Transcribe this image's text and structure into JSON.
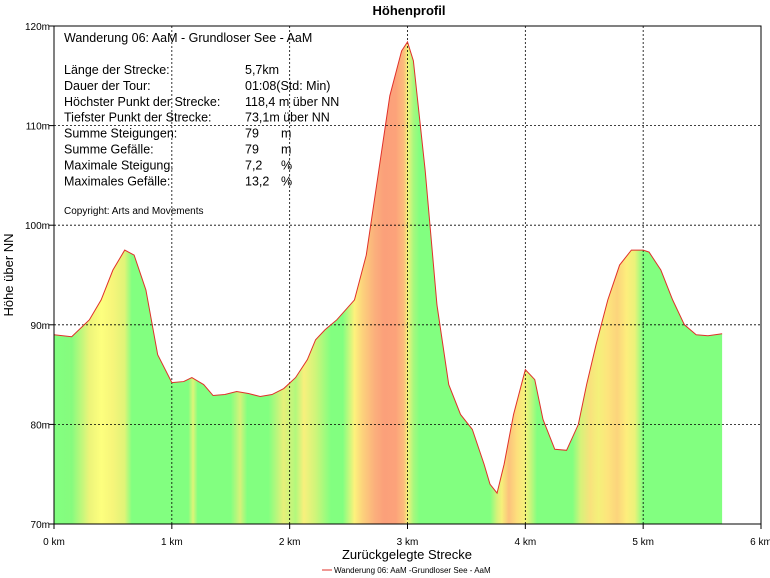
{
  "chart_data": {
    "type": "area",
    "title": "Höhenprofil",
    "xlabel": "Zurückgelegte Strecke",
    "ylabel": "Höhe über NN",
    "xlim": [
      0,
      6
    ],
    "ylim": [
      70,
      120
    ],
    "x_ticks": [
      0,
      1,
      2,
      3,
      4,
      5,
      6
    ],
    "x_tick_labels": [
      "0 km",
      "1 km",
      "2 km",
      "3 km",
      "4 km",
      "5 km",
      "6 km"
    ],
    "y_ticks": [
      70,
      80,
      90,
      100,
      110,
      120
    ],
    "y_tick_labels": [
      "70m",
      "80m",
      "90m",
      "100m",
      "110m",
      "120m"
    ],
    "grid": true,
    "legend_position": "bottom-center",
    "series": [
      {
        "name": "Wanderung 06: AaM -Grundloser See - AaM",
        "color": "#e0302a",
        "x": [
          0,
          0.15,
          0.3,
          0.4,
          0.5,
          0.6,
          0.68,
          0.78,
          0.88,
          1.0,
          1.1,
          1.17,
          1.27,
          1.35,
          1.45,
          1.55,
          1.65,
          1.75,
          1.85,
          1.95,
          2.05,
          2.15,
          2.22,
          2.3,
          2.4,
          2.55,
          2.65,
          2.75,
          2.85,
          2.95,
          3.0,
          3.05,
          3.15,
          3.25,
          3.35,
          3.45,
          3.55,
          3.65,
          3.7,
          3.76,
          3.82,
          3.9,
          4.0,
          4.08,
          4.15,
          4.25,
          4.35,
          4.45,
          4.52,
          4.6,
          4.7,
          4.8,
          4.9,
          5.0,
          5.05,
          5.15,
          5.25,
          5.35,
          5.45,
          5.55,
          5.67
        ],
        "y": [
          89.0,
          88.8,
          90.5,
          92.5,
          95.5,
          97.5,
          97.0,
          93.5,
          87.0,
          84.2,
          84.3,
          84.7,
          84.0,
          82.9,
          83.0,
          83.3,
          83.1,
          82.8,
          83.0,
          83.6,
          84.7,
          86.5,
          88.5,
          89.5,
          90.5,
          92.5,
          97.0,
          105.0,
          113.0,
          117.5,
          118.4,
          116.5,
          105.5,
          92.0,
          84.0,
          81.0,
          79.5,
          76.0,
          74.0,
          73.1,
          76.0,
          81.0,
          85.5,
          84.5,
          80.5,
          77.5,
          77.4,
          80.0,
          84.0,
          88.0,
          92.5,
          96.0,
          97.5,
          97.5,
          97.3,
          95.5,
          92.5,
          90.0,
          89.0,
          88.9,
          89.1
        ]
      }
    ],
    "gradient_stops": [
      {
        "x": 0.0,
        "color": "#82ff80"
      },
      {
        "x": 0.15,
        "color": "#86fb7e"
      },
      {
        "x": 0.3,
        "color": "#ecf47a"
      },
      {
        "x": 0.4,
        "color": "#fdff7e"
      },
      {
        "x": 0.5,
        "color": "#f6f57a"
      },
      {
        "x": 0.6,
        "color": "#dff478"
      },
      {
        "x": 0.66,
        "color": "#82ff80"
      },
      {
        "x": 0.85,
        "color": "#82ff80"
      },
      {
        "x": 1.14,
        "color": "#82ff80"
      },
      {
        "x": 1.18,
        "color": "#dff478"
      },
      {
        "x": 1.22,
        "color": "#82ff80"
      },
      {
        "x": 1.5,
        "color": "#82ff80"
      },
      {
        "x": 1.58,
        "color": "#d6f27a"
      },
      {
        "x": 1.64,
        "color": "#82ff80"
      },
      {
        "x": 1.82,
        "color": "#82ff80"
      },
      {
        "x": 1.95,
        "color": "#e8f07a"
      },
      {
        "x": 2.05,
        "color": "#b2f87c"
      },
      {
        "x": 2.12,
        "color": "#f8f07c"
      },
      {
        "x": 2.22,
        "color": "#cff57a"
      },
      {
        "x": 2.35,
        "color": "#82ff80"
      },
      {
        "x": 2.45,
        "color": "#82ff80"
      },
      {
        "x": 2.55,
        "color": "#fdf27c"
      },
      {
        "x": 2.62,
        "color": "#fcd17c"
      },
      {
        "x": 2.72,
        "color": "#fbb07c"
      },
      {
        "x": 2.8,
        "color": "#fba07a"
      },
      {
        "x": 2.9,
        "color": "#fca27a"
      },
      {
        "x": 2.97,
        "color": "#fbbd7c"
      },
      {
        "x": 3.0,
        "color": "#f6f27a"
      },
      {
        "x": 3.05,
        "color": "#a8f87e"
      },
      {
        "x": 3.1,
        "color": "#82ff80"
      },
      {
        "x": 3.7,
        "color": "#82ff80"
      },
      {
        "x": 3.76,
        "color": "#d6f27a"
      },
      {
        "x": 3.8,
        "color": "#f6f07a"
      },
      {
        "x": 3.86,
        "color": "#fcc27c"
      },
      {
        "x": 3.93,
        "color": "#fde07c"
      },
      {
        "x": 4.0,
        "color": "#f4f37a"
      },
      {
        "x": 4.05,
        "color": "#c2f67c"
      },
      {
        "x": 4.1,
        "color": "#82ff80"
      },
      {
        "x": 4.4,
        "color": "#82ff80"
      },
      {
        "x": 4.47,
        "color": "#d6f27a"
      },
      {
        "x": 4.55,
        "color": "#f8e27c"
      },
      {
        "x": 4.62,
        "color": "#f4f07a"
      },
      {
        "x": 4.7,
        "color": "#fde47c"
      },
      {
        "x": 4.78,
        "color": "#fcd47c"
      },
      {
        "x": 4.86,
        "color": "#fdee7c"
      },
      {
        "x": 4.93,
        "color": "#eaf27a"
      },
      {
        "x": 5.0,
        "color": "#82ff80"
      },
      {
        "x": 5.67,
        "color": "#82ff80"
      }
    ],
    "annotations": {
      "title": "Wanderung 06: AaM - Grundloser See - AaM",
      "rows": [
        {
          "label": "Länge der Strecke:",
          "value": "5,7km"
        },
        {
          "label": "Dauer der Tour:",
          "value": "01:08(Std: Min)"
        },
        {
          "label": "Höchster Punkt der Strecke:",
          "value": "118,4 m über NN"
        },
        {
          "label": "Tiefster Punkt der Strecke:",
          "value": "73,1m über NN"
        },
        {
          "label": "Summe Steigungen:",
          "value": "79",
          "unit": "m"
        },
        {
          "label": "Summe Gefälle:",
          "value": "79",
          "unit": "m"
        },
        {
          "label": "Maximale Steigung:",
          "value": "7,2",
          "unit": "%"
        },
        {
          "label": "Maximales Gefälle:",
          "value": "13,2",
          "unit": "%"
        }
      ],
      "copyright": "Copyright: Arts and Movements"
    }
  }
}
